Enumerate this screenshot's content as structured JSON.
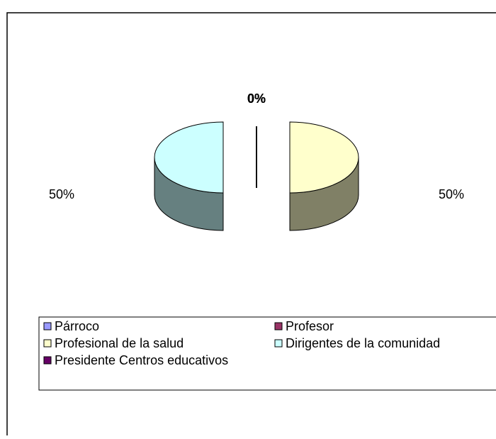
{
  "chart_data": {
    "type": "pie3d",
    "categories": [
      "Párroco",
      "Profesor",
      "Profesional de la salud",
      "Dirigentes de la comunidad",
      "Presidente Centros educativos"
    ],
    "values": [
      0,
      0,
      50,
      50,
      0
    ],
    "value_labels": [
      "0%",
      "0%",
      "50%",
      "50%",
      "0%"
    ],
    "colors": [
      "#9999ff",
      "#993366",
      "#ffffcc",
      "#ccffff",
      "#660066"
    ],
    "legend": "bottom"
  }
}
